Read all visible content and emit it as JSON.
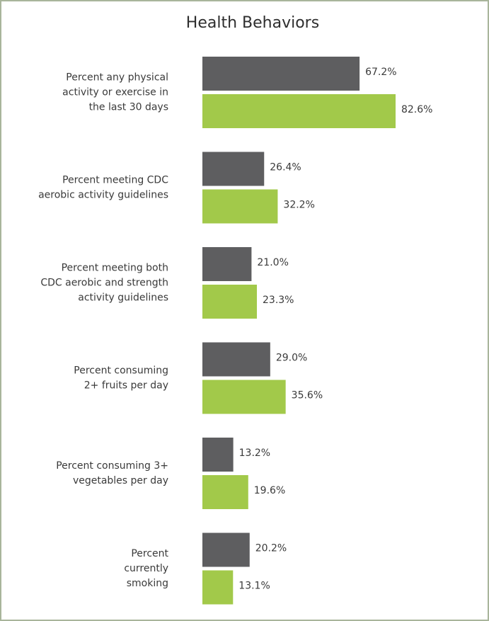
{
  "chart_data": {
    "type": "bar",
    "orientation": "horizontal",
    "title": "Health Behaviors",
    "categories": [
      [
        "Percent any physical",
        "activity or exercise in",
        "the last 30 days"
      ],
      [
        "Percent meeting CDC",
        "aerobic activity guidelines"
      ],
      [
        "Percent meeting both",
        "CDC aerobic and strength",
        "activity guidelines"
      ],
      [
        "Percent consuming",
        "2+ fruits per day"
      ],
      [
        "Percent consuming 3+",
        "vegetables per day"
      ],
      [
        "Percent",
        "currently",
        "smoking"
      ]
    ],
    "series": [
      {
        "color": "#5e5e60",
        "values": [
          67.2,
          26.4,
          21.0,
          29.0,
          13.2,
          20.2
        ],
        "value_labels": [
          "67.2%",
          "26.4%",
          "21.0%",
          "29.0%",
          "13.2%",
          "20.2%"
        ]
      },
      {
        "color": "#a2c94a",
        "values": [
          82.6,
          32.2,
          23.3,
          35.6,
          19.6,
          13.1
        ],
        "value_labels": [
          "82.6%",
          "32.2%",
          "23.3%",
          "35.6%",
          "19.6%",
          "13.1%"
        ]
      }
    ]
  }
}
